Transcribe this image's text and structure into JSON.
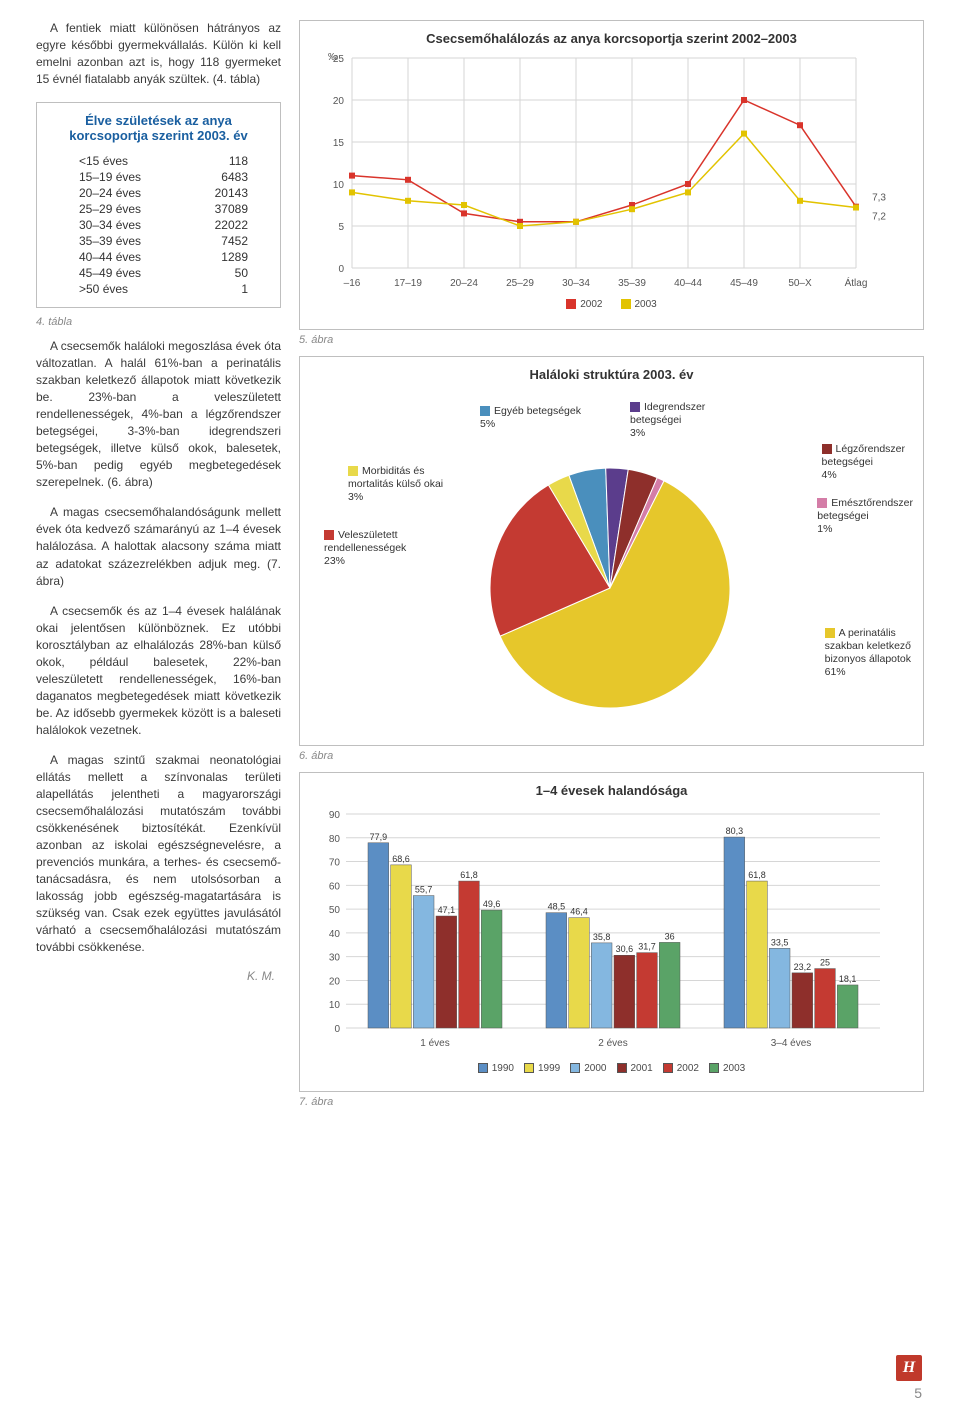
{
  "left": {
    "p1": "A fentiek miatt különösen hátrányos az egyre későbbi gyermekvállalás. Külön ki kell emelni azonban azt is, hogy 118 gyermeket 15 évnél fiatalabb anyák szültek. (4. tábla)",
    "tbl_title": "Élve születések az anya korcsoportja szerint 2003. év",
    "tbl": {
      "rows": [
        {
          "l": "<15 éves",
          "v": "118"
        },
        {
          "l": "15–19 éves",
          "v": "6483"
        },
        {
          "l": "20–24 éves",
          "v": "20143"
        },
        {
          "l": "25–29 éves",
          "v": "37089"
        },
        {
          "l": "30–34 éves",
          "v": "22022"
        },
        {
          "l": "35–39 éves",
          "v": "7452"
        },
        {
          "l": "40–44 éves",
          "v": "1289"
        },
        {
          "l": "45–49 éves",
          "v": "50"
        },
        {
          "l": ">50 éves",
          "v": "1"
        }
      ]
    },
    "cap4": "4. tábla",
    "p2": "A csecsemők haláloki megoszlása évek óta változatlan. A halál 61%-ban a perinatális szakban keletkező állapotok miatt következik be. 23%-ban a veleszületett rendellenességek, 4%-ban a légzőrendszer betegségei, 3-3%-ban idegrendszeri betegségek, illetve külső okok, balesetek, 5%-ban pedig egyéb megbetegedések szerepelnek. (6. ábra)",
    "p3": "A magas csecsemőhalandóságunk mellett évek óta kedvező számarányú az 1–4 évesek halálozása. A halottak alacsony száma miatt az adatokat százezrelékben adjuk meg. (7. ábra)",
    "p4": "A csecsemők és az 1–4 évesek halálának okai jelentősen különböznek. Ez utóbbi korosztályban az elhalálozás 28%-ban külső okok, például balesetek, 22%-ban veleszületett rendellenességek, 16%-ban daganatos megbetegedések miatt következik be. Az idősebb gyermekek között is a baleseti halálokok vezetnek.",
    "p5": "A magas szintű szakmai neonatológiai ellátás mellett a színvonalas területi alapellátás jelentheti a magyarországi csecsemőhalálozási mutatószám további csökkenésének biztosítékát. Ezenkívül azonban az iskolai egészségnevelésre, a prevenciós munkára, a terhes- és csecsemő-tanácsadásra, és nem utolsósorban a lakosság jobb egészség-magatartására is szükség van. Csak ezek együttes javulásától várható a csecsemőhalálozási mutatószám további csökkenése.",
    "author": "K. M."
  },
  "chart5": {
    "title": "Csecsemőhalálozás az anya korcsoportja szerint 2002–2003",
    "yunit": "‰",
    "ylim": [
      0,
      25
    ],
    "ytick": 5,
    "cats": [
      "–16",
      "17–19",
      "20–24",
      "25–29",
      "30–34",
      "35–39",
      "40–44",
      "45–49",
      "50–X",
      "Átlag"
    ],
    "s2002": [
      11,
      10.5,
      6.5,
      5.5,
      5.5,
      7.5,
      10,
      20,
      17,
      7.3
    ],
    "s2003": [
      9,
      8,
      7.5,
      5,
      5.5,
      7,
      9,
      16,
      8,
      7.2
    ],
    "end_2002": "7,3",
    "end_2003": "7,2",
    "legend": {
      "a": "2002",
      "b": "2003"
    },
    "caption": "5. ábra",
    "colors": {
      "s2002": "#d9342b",
      "s2003": "#e2c300",
      "grid": "#d6d6d6",
      "bg": "#ffffff"
    }
  },
  "pie": {
    "title": "Haláloki struktúra 2003. év",
    "caption": "6. ábra",
    "slices": [
      {
        "label": "A perinatális szakban keletkező bizonyos állapotok 61%",
        "color": "#e6c72b",
        "pct": 61
      },
      {
        "label": "Veleszületett rendellenességek 23%",
        "color": "#c43a32",
        "pct": 23
      },
      {
        "label": "Morbiditás és mortalitás külső okai 3%",
        "color": "#e8d94a",
        "pct": 3
      },
      {
        "label": "Egyéb betegségek 5%",
        "color": "#4a8fbd",
        "pct": 5
      },
      {
        "label": "Idegrendszer betegségei 3%",
        "color": "#5b3d8c",
        "pct": 3
      },
      {
        "label": "Légzőrendszer betegségei 4%",
        "color": "#8e2f2b",
        "pct": 4
      },
      {
        "label": "Emésztőrendszer betegségei 1%",
        "color": "#d47da7",
        "pct": 1
      }
    ],
    "label_egyeb": "Egyéb betegségek\n5%",
    "label_ideg": "Idegrendszer\nbetegségei\n3%",
    "label_legzo": "Légzőrendszer\nbetegségei\n4%",
    "label_emeszt": "Emésztőrendszer\nbetegségei\n1%",
    "label_morb": "Morbiditás és\nmortalitás külső okai\n3%",
    "label_vele": "Veleszületett\nrendellenességek\n23%",
    "label_peri": "A perinatális\nszakban keletkező\nbizonyos állapotok\n61%"
  },
  "bar": {
    "title": "1–4 évesek halandósága",
    "caption": "7. ábra",
    "ylim": [
      0,
      90
    ],
    "ytick": 10,
    "groups": [
      "1 éves",
      "2 éves",
      "3–4 éves"
    ],
    "series": [
      {
        "name": "1990",
        "color": "#5b8ec4",
        "vals": [
          77.9,
          48.5,
          80.3
        ]
      },
      {
        "name": "1999",
        "color": "#e8d94a",
        "vals": [
          68.6,
          46.4,
          61.8
        ]
      },
      {
        "name": "2000",
        "color": "#84b7e0",
        "vals": [
          55.7,
          35.8,
          33.5
        ]
      },
      {
        "name": "2001",
        "color": "#8e2f2b",
        "vals": [
          47.1,
          30.6,
          23.2
        ]
      },
      {
        "name": "2002",
        "color": "#c43a32",
        "vals": [
          61.8,
          31.7,
          25.0
        ]
      },
      {
        "name": "2003",
        "color": "#5aa367",
        "vals": [
          49.6,
          36.0,
          18.1
        ]
      }
    ]
  },
  "page_num": "5"
}
